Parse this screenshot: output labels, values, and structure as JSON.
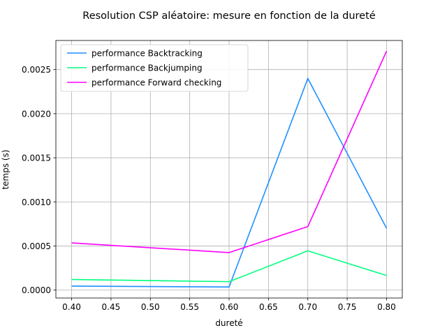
{
  "chart_data": {
    "type": "line",
    "title": "Resolution CSP aléatoire: mesure en fonction de la dureté",
    "xlabel": "dureté",
    "ylabel": "temps (s)",
    "x": [
      0.4,
      0.6,
      0.7,
      0.8
    ],
    "xlim": [
      0.38,
      0.82
    ],
    "ylim": [
      -9e-05,
      0.00283
    ],
    "xticks": [
      0.4,
      0.45,
      0.5,
      0.55,
      0.6,
      0.65,
      0.7,
      0.75,
      0.8
    ],
    "xtick_labels": [
      "0.40",
      "0.45",
      "0.50",
      "0.55",
      "0.60",
      "0.65",
      "0.70",
      "0.75",
      "0.80"
    ],
    "yticks": [
      0.0,
      0.0005,
      0.001,
      0.0015,
      0.002,
      0.0025
    ],
    "ytick_labels": [
      "0.0000",
      "0.0005",
      "0.0010",
      "0.0015",
      "0.0020",
      "0.0025"
    ],
    "grid": true,
    "legend_position": "top-left",
    "series": [
      {
        "name": "performance Backtracking",
        "color": "#1e90ff",
        "values": [
          4.5e-05,
          3.5e-05,
          0.0024,
          0.0007
        ]
      },
      {
        "name": "performance Backjumping",
        "color": "#00ff7f",
        "values": [
          0.00012,
          9.5e-05,
          0.000445,
          0.000165
        ]
      },
      {
        "name": "performance Forward checking",
        "color": "#ff00ff",
        "values": [
          0.000535,
          0.000425,
          0.00072,
          0.00271
        ]
      }
    ]
  }
}
